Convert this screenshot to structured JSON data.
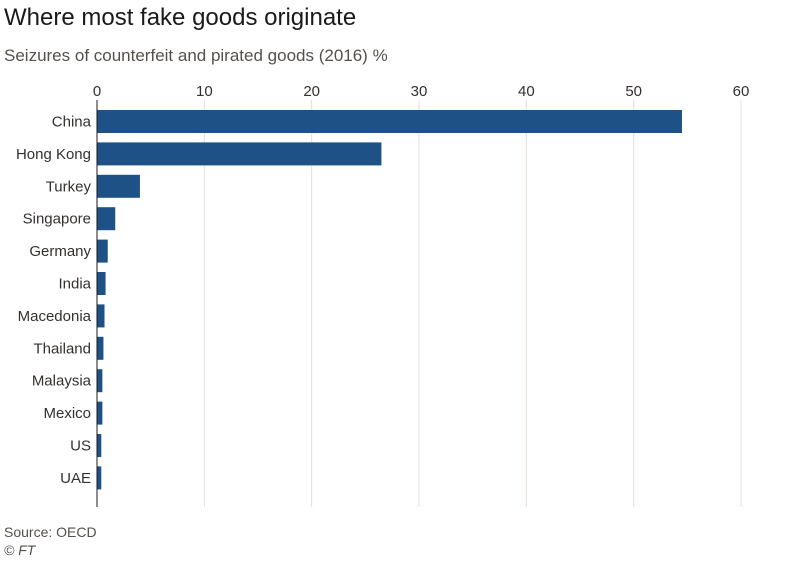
{
  "header": {
    "title": "Where most fake goods originate",
    "subtitle": "Seizures of counterfeit and pirated goods (2016) %"
  },
  "footer": {
    "source": "Source: OECD",
    "copyright": "© FT"
  },
  "colors": {
    "bar": "#1e5186",
    "grid": "#e8ddd6",
    "axis": "#1a1a1a",
    "text": "#33302e"
  },
  "chart_data": {
    "type": "bar",
    "orientation": "horizontal",
    "title": "Where most fake goods originate",
    "subtitle": "Seizures of counterfeit and pirated goods (2016) %",
    "xlabel": "",
    "ylabel": "",
    "xlim": [
      0,
      60
    ],
    "x_ticks": [
      0,
      10,
      20,
      30,
      40,
      50,
      60
    ],
    "x_axis_position": "top",
    "grid": "vertical",
    "categories": [
      "China",
      "Hong Kong",
      "Turkey",
      "Singapore",
      "Germany",
      "India",
      "Macedonia",
      "Thailand",
      "Malaysia",
      "Mexico",
      "US",
      "UAE"
    ],
    "values": [
      54.5,
      26.5,
      4.0,
      1.7,
      1.0,
      0.8,
      0.7,
      0.6,
      0.5,
      0.5,
      0.4,
      0.4
    ]
  }
}
